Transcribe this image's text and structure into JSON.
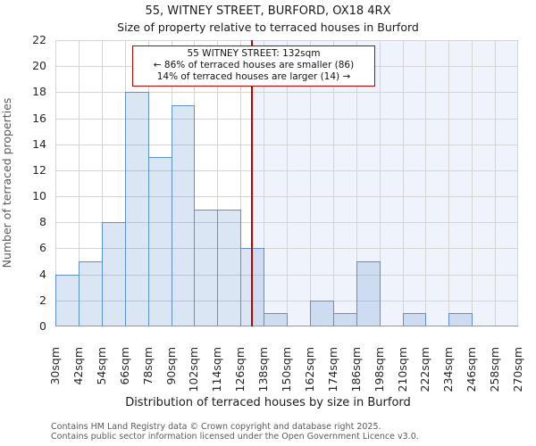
{
  "header": {
    "title": "55, WITNEY STREET, BURFORD, OX18 4RX",
    "subtitle": "Size of property relative to terraced houses in Burford"
  },
  "annotation": {
    "line1": "55 WITNEY STREET: 132sqm",
    "line2": "← 86% of terraced houses are smaller (86)",
    "line3": "14% of terraced houses are larger (14) →"
  },
  "chart_data": {
    "type": "bar",
    "histogram": true,
    "bin_start_sqm": 30,
    "bin_width_sqm": 12,
    "bin_labels": [
      "30sqm",
      "42sqm",
      "54sqm",
      "66sqm",
      "78sqm",
      "90sqm",
      "102sqm",
      "114sqm",
      "126sqm",
      "138sqm",
      "150sqm",
      "162sqm",
      "174sqm",
      "186sqm",
      "198sqm",
      "210sqm",
      "222sqm",
      "234sqm",
      "246sqm",
      "258sqm",
      "270sqm"
    ],
    "values": [
      4,
      5,
      8,
      18,
      13,
      17,
      9,
      9,
      6,
      1,
      0,
      2,
      1,
      5,
      0,
      1,
      0,
      1,
      0,
      0
    ],
    "marker": {
      "label": "55 WITNEY STREET",
      "value_sqm": 132
    },
    "smaller": {
      "percent": 86,
      "count": 86
    },
    "larger": {
      "percent": 14,
      "count": 14
    },
    "xlabel": "Distribution of terraced houses by size in Burford",
    "ylabel": "Number of terraced properties",
    "ylim": [
      0,
      22
    ],
    "yticks": [
      0,
      2,
      4,
      6,
      8,
      10,
      12,
      14,
      16,
      18,
      20,
      22
    ],
    "grid": true,
    "legend": false,
    "colors": {
      "bar_fill": "rgba(93,142,207,0.22)",
      "bar_edge": "#5e8fd0",
      "marker_line": "#c00000",
      "annotation_border": "#c00000",
      "shade_right": "#eff3fb",
      "grid": "#d4d4d4",
      "axis_line": "#8f979f"
    }
  },
  "footer": {
    "line1": "Contains HM Land Registry data © Crown copyright and database right 2025.",
    "line2": "Contains public sector information licensed under the Open Government Licence v3.0."
  }
}
